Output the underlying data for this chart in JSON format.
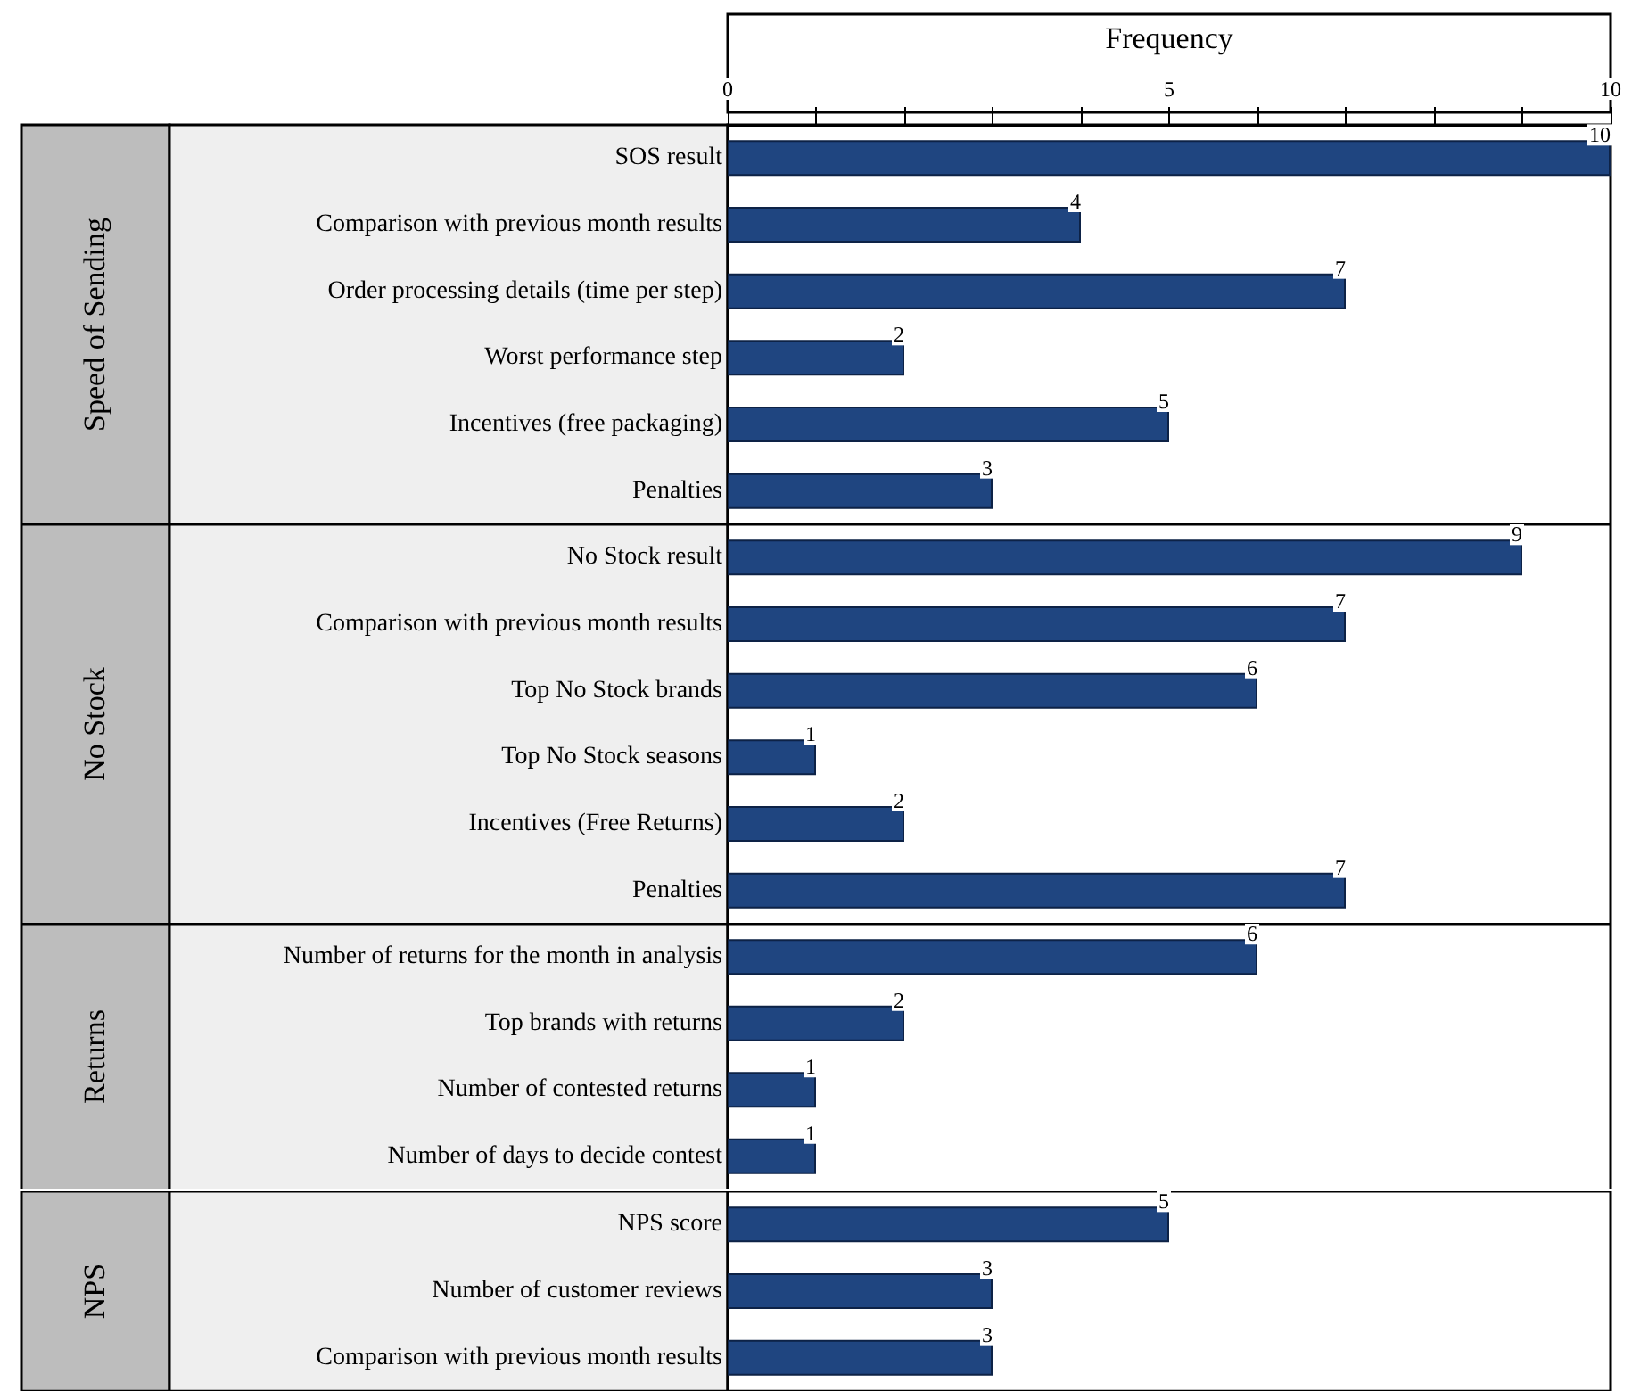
{
  "chart_data": [
    {
      "type": "bar",
      "orientation": "horizontal",
      "ylabel": "Speed of Sending",
      "xlabel": "Frequency",
      "color": "#1f4580",
      "data_labels": true,
      "grid": false,
      "categories": [
        "SOS result",
        "Comparison with previous month results",
        "Order processing details (time per step)",
        "Worst performance step",
        "Incentives (free packaging)",
        "Penalties"
      ],
      "values": [
        10,
        4,
        7,
        2,
        5,
        3
      ],
      "xlim": [
        0,
        10
      ],
      "xticks": [
        0,
        {
          "value": 1,
          "label": null
        },
        {
          "value": 2,
          "label": null
        },
        {
          "value": 3,
          "label": null
        },
        {
          "value": 4,
          "label": null
        },
        5,
        {
          "value": 6,
          "label": null
        },
        {
          "value": 7,
          "label": null
        },
        {
          "value": 8,
          "label": null
        },
        {
          "value": 9,
          "label": null
        },
        10
      ]
    },
    {
      "type": "bar",
      "orientation": "horizontal",
      "ylabel": "No Stock",
      "color": "#1f4580",
      "data_labels": true,
      "grid": false,
      "tick_labels": "y",
      "categories": [
        "No Stock result",
        "Comparison with previous month results",
        "Top No Stock brands",
        "Top No Stock seasons",
        "Incentives (Free Returns)",
        "Penalties"
      ],
      "values": [
        9,
        7,
        6,
        1,
        2,
        7
      ],
      "xlim": [
        0,
        10
      ]
    },
    {
      "type": "bar",
      "orientation": "horizontal",
      "ylabel": "Returns",
      "color": "#1f4580",
      "data_labels": true,
      "grid": false,
      "tick_labels": "y",
      "categories": [
        "Number of returns for the month in analysis",
        "Top brands with returns",
        "Number of contested returns",
        "Number of days to decide contest"
      ],
      "values": [
        6,
        2,
        1,
        1
      ],
      "xlim": [
        0,
        10
      ]
    },
    {
      "type": "bar",
      "orientation": "horizontal",
      "ylabel": "NPS",
      "color": "#1f4580",
      "data_labels": true,
      "grid": false,
      "tick_labels": "y",
      "categories": [
        "NPS score",
        "Number of customer reviews",
        "Comparison with previous month results"
      ],
      "values": [
        5,
        3,
        3
      ],
      "xlim": [
        0,
        10
      ]
    }
  ]
}
